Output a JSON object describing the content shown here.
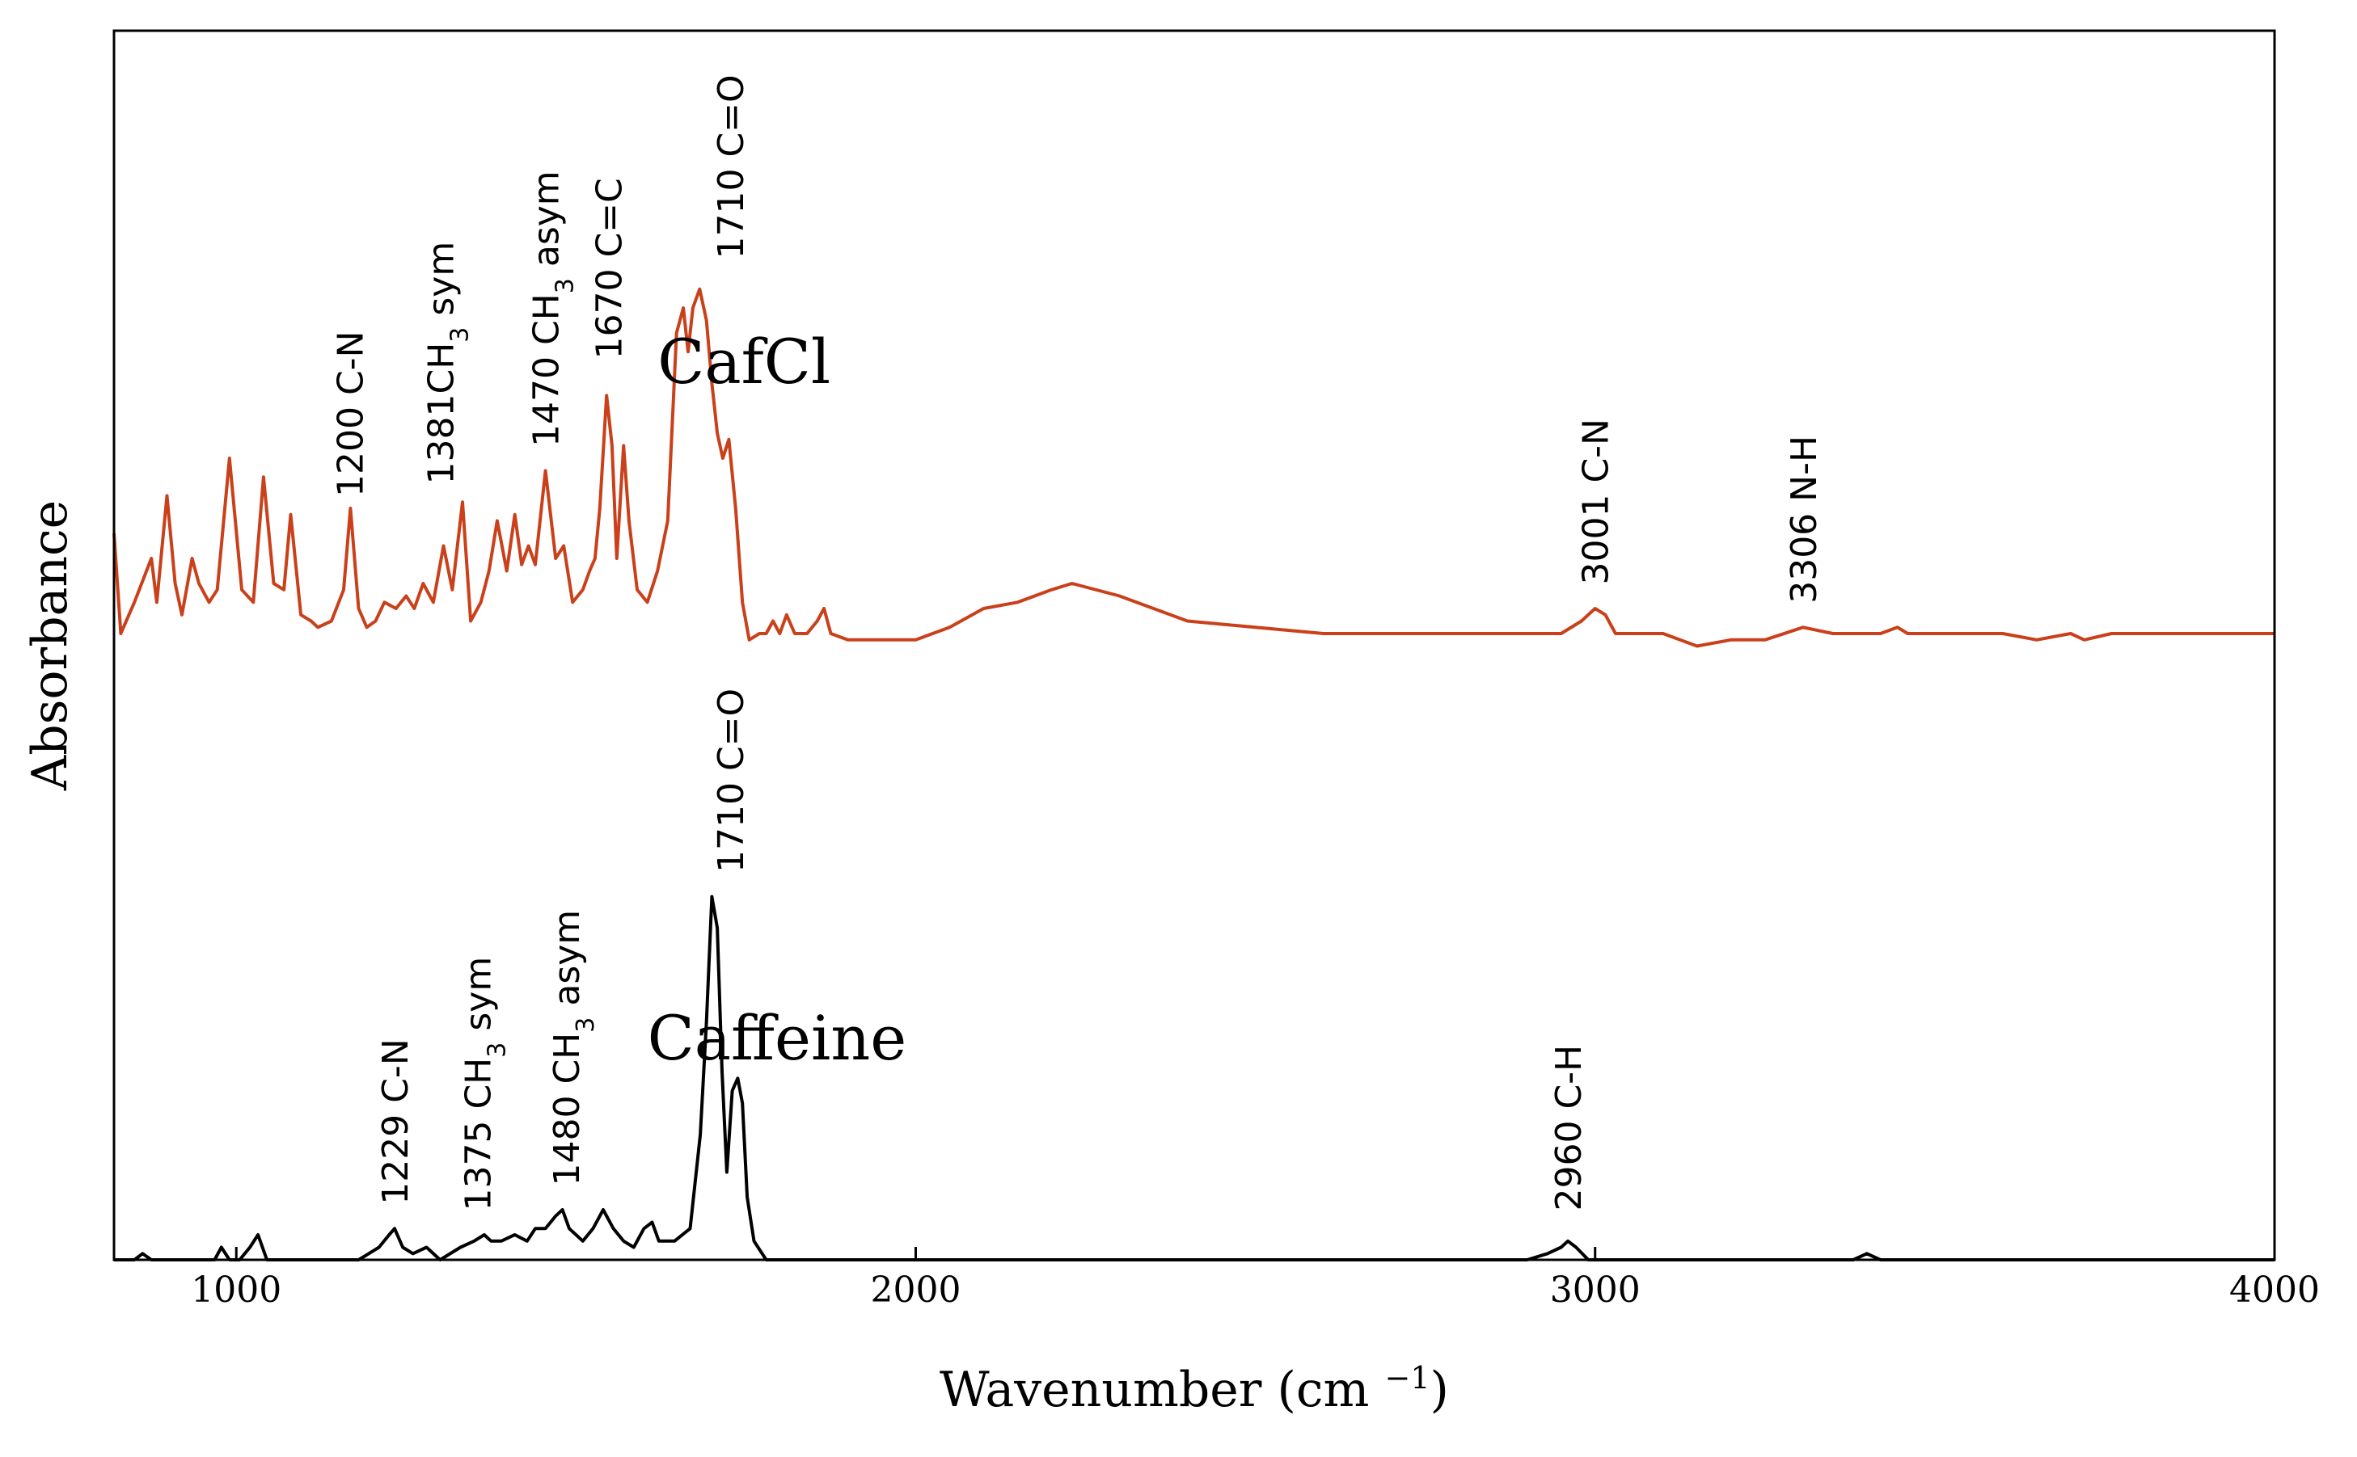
{
  "chart_data": {
    "type": "line",
    "title": "",
    "xlabel": "Wavenumber (cm",
    "xlabel_unit_sup": "−1",
    "xlabel_close": ")",
    "ylabel": "Absorbance",
    "xlim": [
      820,
      4000
    ],
    "ylim": [
      0,
      2.1
    ],
    "xticks": [
      1000,
      2000,
      3000,
      4000
    ],
    "grid": false,
    "legend": "none",
    "series": [
      {
        "name": "CafCl",
        "color": "#c9401a",
        "baseline": 1.0,
        "points": [
          [
            820,
            1.16
          ],
          [
            830,
            1.0
          ],
          [
            850,
            1.05
          ],
          [
            875,
            1.12
          ],
          [
            883,
            1.05
          ],
          [
            898,
            1.22
          ],
          [
            910,
            1.08
          ],
          [
            920,
            1.03
          ],
          [
            935,
            1.12
          ],
          [
            945,
            1.08
          ],
          [
            960,
            1.05
          ],
          [
            972,
            1.07
          ],
          [
            990,
            1.28
          ],
          [
            1008,
            1.07
          ],
          [
            1025,
            1.05
          ],
          [
            1040,
            1.25
          ],
          [
            1055,
            1.08
          ],
          [
            1070,
            1.07
          ],
          [
            1080,
            1.19
          ],
          [
            1095,
            1.03
          ],
          [
            1110,
            1.02
          ],
          [
            1120,
            1.01
          ],
          [
            1140,
            1.02
          ],
          [
            1158,
            1.07
          ],
          [
            1168,
            1.2
          ],
          [
            1180,
            1.04
          ],
          [
            1192,
            1.01
          ],
          [
            1205,
            1.02
          ],
          [
            1218,
            1.05
          ],
          [
            1235,
            1.04
          ],
          [
            1250,
            1.06
          ],
          [
            1262,
            1.04
          ],
          [
            1275,
            1.08
          ],
          [
            1290,
            1.05
          ],
          [
            1305,
            1.14
          ],
          [
            1318,
            1.07
          ],
          [
            1333,
            1.21
          ],
          [
            1345,
            1.02
          ],
          [
            1360,
            1.05
          ],
          [
            1372,
            1.1
          ],
          [
            1384,
            1.18
          ],
          [
            1398,
            1.1
          ],
          [
            1410,
            1.19
          ],
          [
            1420,
            1.11
          ],
          [
            1430,
            1.14
          ],
          [
            1440,
            1.11
          ],
          [
            1455,
            1.26
          ],
          [
            1470,
            1.12
          ],
          [
            1482,
            1.14
          ],
          [
            1495,
            1.05
          ],
          [
            1510,
            1.07
          ],
          [
            1520,
            1.1
          ],
          [
            1528,
            1.12
          ],
          [
            1535,
            1.2
          ],
          [
            1545,
            1.38
          ],
          [
            1553,
            1.3
          ],
          [
            1560,
            1.12
          ],
          [
            1570,
            1.3
          ],
          [
            1578,
            1.18
          ],
          [
            1590,
            1.07
          ],
          [
            1605,
            1.05
          ],
          [
            1620,
            1.1
          ],
          [
            1635,
            1.18
          ],
          [
            1648,
            1.48
          ],
          [
            1658,
            1.52
          ],
          [
            1665,
            1.45
          ],
          [
            1672,
            1.52
          ],
          [
            1682,
            1.55
          ],
          [
            1692,
            1.5
          ],
          [
            1700,
            1.4
          ],
          [
            1708,
            1.32
          ],
          [
            1716,
            1.28
          ],
          [
            1725,
            1.31
          ],
          [
            1735,
            1.2
          ],
          [
            1745,
            1.05
          ],
          [
            1755,
            0.99
          ],
          [
            1770,
            1.0
          ],
          [
            1780,
            1.0
          ],
          [
            1790,
            1.02
          ],
          [
            1800,
            1.0
          ],
          [
            1810,
            1.03
          ],
          [
            1822,
            1.0
          ],
          [
            1840,
            1.0
          ],
          [
            1855,
            1.02
          ],
          [
            1865,
            1.04
          ],
          [
            1875,
            1.0
          ],
          [
            1900,
            0.99
          ],
          [
            1950,
            0.99
          ],
          [
            2000,
            0.99
          ],
          [
            2050,
            1.01
          ],
          [
            2100,
            1.04
          ],
          [
            2150,
            1.05
          ],
          [
            2200,
            1.07
          ],
          [
            2230,
            1.08
          ],
          [
            2300,
            1.06
          ],
          [
            2400,
            1.02
          ],
          [
            2500,
            1.01
          ],
          [
            2600,
            1.0
          ],
          [
            2700,
            1.0
          ],
          [
            2800,
            1.0
          ],
          [
            2900,
            1.0
          ],
          [
            2950,
            1.0
          ],
          [
            2980,
            1.02
          ],
          [
            3000,
            1.04
          ],
          [
            3015,
            1.03
          ],
          [
            3030,
            1.0
          ],
          [
            3100,
            1.0
          ],
          [
            3150,
            0.98
          ],
          [
            3200,
            0.99
          ],
          [
            3250,
            0.99
          ],
          [
            3306,
            1.01
          ],
          [
            3350,
            1.0
          ],
          [
            3400,
            1.0
          ],
          [
            3420,
            1.0
          ],
          [
            3445,
            1.01
          ],
          [
            3460,
            1.0
          ],
          [
            3500,
            1.0
          ],
          [
            3550,
            1.0
          ],
          [
            3600,
            1.0
          ],
          [
            3650,
            0.99
          ],
          [
            3700,
            1.0
          ],
          [
            3720,
            0.99
          ],
          [
            3760,
            1.0
          ],
          [
            3850,
            1.0
          ],
          [
            3950,
            1.0
          ],
          [
            4000,
            1.0
          ]
        ]
      },
      {
        "name": "Caffeine",
        "color": "#000000",
        "baseline": 0.0,
        "points": [
          [
            820,
            0.0
          ],
          [
            850,
            0.0
          ],
          [
            862,
            0.01
          ],
          [
            875,
            0.0
          ],
          [
            940,
            0.0
          ],
          [
            968,
            0.0
          ],
          [
            978,
            0.02
          ],
          [
            990,
            0.0
          ],
          [
            1005,
            0.0
          ],
          [
            1020,
            0.02
          ],
          [
            1032,
            0.04
          ],
          [
            1045,
            0.0
          ],
          [
            1100,
            0.0
          ],
          [
            1180,
            0.0
          ],
          [
            1195,
            0.01
          ],
          [
            1210,
            0.02
          ],
          [
            1225,
            0.04
          ],
          [
            1233,
            0.05
          ],
          [
            1245,
            0.02
          ],
          [
            1260,
            0.01
          ],
          [
            1280,
            0.02
          ],
          [
            1300,
            0.0
          ],
          [
            1330,
            0.02
          ],
          [
            1350,
            0.03
          ],
          [
            1365,
            0.04
          ],
          [
            1375,
            0.03
          ],
          [
            1390,
            0.03
          ],
          [
            1410,
            0.04
          ],
          [
            1428,
            0.03
          ],
          [
            1440,
            0.05
          ],
          [
            1455,
            0.05
          ],
          [
            1470,
            0.07
          ],
          [
            1480,
            0.08
          ],
          [
            1490,
            0.05
          ],
          [
            1510,
            0.03
          ],
          [
            1525,
            0.05
          ],
          [
            1540,
            0.08
          ],
          [
            1555,
            0.05
          ],
          [
            1570,
            0.03
          ],
          [
            1585,
            0.02
          ],
          [
            1600,
            0.05
          ],
          [
            1612,
            0.06
          ],
          [
            1622,
            0.03
          ],
          [
            1645,
            0.03
          ],
          [
            1668,
            0.05
          ],
          [
            1683,
            0.2
          ],
          [
            1692,
            0.38
          ],
          [
            1700,
            0.58
          ],
          [
            1708,
            0.53
          ],
          [
            1715,
            0.3
          ],
          [
            1722,
            0.14
          ],
          [
            1730,
            0.27
          ],
          [
            1738,
            0.29
          ],
          [
            1745,
            0.25
          ],
          [
            1752,
            0.1
          ],
          [
            1762,
            0.03
          ],
          [
            1780,
            0.0
          ],
          [
            1850,
            0.0
          ],
          [
            2000,
            0.0
          ],
          [
            2500,
            0.0
          ],
          [
            2800,
            0.0
          ],
          [
            2900,
            0.0
          ],
          [
            2930,
            0.01
          ],
          [
            2950,
            0.02
          ],
          [
            2960,
            0.03
          ],
          [
            2972,
            0.02
          ],
          [
            2990,
            0.0
          ],
          [
            3100,
            0.0
          ],
          [
            3380,
            0.0
          ],
          [
            3400,
            0.01
          ],
          [
            3420,
            0.0
          ],
          [
            3600,
            0.0
          ],
          [
            4000,
            0.0
          ]
        ]
      }
    ],
    "annotations": [
      {
        "series": "CafCl",
        "text_main": "1200 C-N",
        "x": 1167,
        "y": 1.2
      },
      {
        "series": "CafCl",
        "text_main": "1381CH",
        "sub": "3",
        "text_end": " sym",
        "x": 1300,
        "y": 1.22
      },
      {
        "series": "CafCl",
        "text_main": "1470 CH",
        "sub": "3",
        "text_end": " asym",
        "x": 1455,
        "y": 1.28
      },
      {
        "series": "CafCl",
        "text_main": "1670 C=C",
        "x": 1548,
        "y": 1.42
      },
      {
        "series": "CafCl",
        "text_main": "1710 C=O",
        "x": 1727,
        "y": 1.58
      },
      {
        "series": "CafCl",
        "text_main": "3001 C-N",
        "x": 3000,
        "y": 1.06
      },
      {
        "series": "CafCl",
        "text_main": "3306 N-H",
        "x": 3306,
        "y": 1.03
      },
      {
        "series": "Caffeine",
        "text_main": "1229 C-N",
        "x": 1233,
        "y": 0.07
      },
      {
        "series": "Caffeine",
        "text_main": "1375 CH",
        "sub": "3",
        "text_end": " sym",
        "x": 1355,
        "y": 0.06
      },
      {
        "series": "Caffeine",
        "text_main": "1480 CH",
        "sub": "3",
        "text_end": " asym",
        "x": 1485,
        "y": 0.1
      },
      {
        "series": "Caffeine",
        "text_main": "1710 C=O",
        "x": 1727,
        "y": 0.6
      },
      {
        "series": "Caffeine",
        "text_main": "2960 C-H",
        "x": 2960,
        "y": 0.06
      }
    ],
    "series_labels": [
      {
        "text": "CafCl",
        "x": 1620,
        "y": 1.4
      },
      {
        "text": "Caffeine",
        "x": 1605,
        "y": 0.32
      }
    ]
  }
}
